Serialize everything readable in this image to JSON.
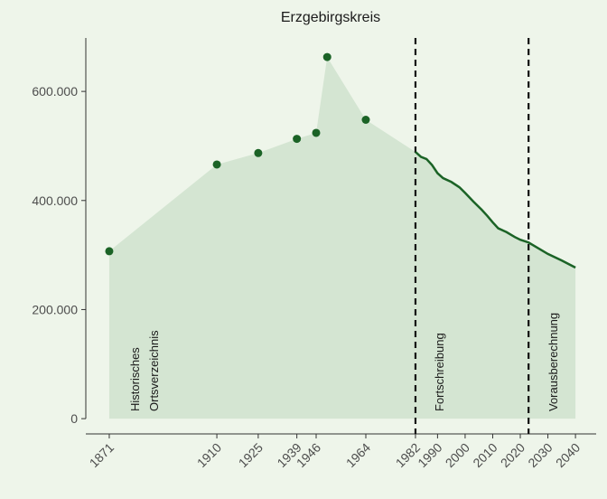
{
  "chart_data": {
    "type": "line",
    "title": "Erzgebirgskreis",
    "xlim": [
      1862.5,
      2047.5
    ],
    "ylim": [
      -28000,
      698000
    ],
    "xticks": [
      1871,
      1910,
      1925,
      1939,
      1946,
      1964,
      1982,
      1990,
      2000,
      2010,
      2020,
      2030,
      2040
    ],
    "yticks": [
      0,
      {
        "value": 200000,
        "label": "200.000"
      },
      {
        "value": 400000,
        "label": "400.000"
      },
      {
        "value": 600000,
        "label": "600.000"
      }
    ],
    "series": [
      {
        "color": "#1b6326",
        "style": "points",
        "x": [
          1871,
          1910,
          1925,
          1939,
          1946,
          1950,
          1964
        ],
        "values": [
          307000,
          466000,
          487000,
          513000,
          524000,
          663000,
          548000
        ]
      },
      {
        "color": "#1b6326",
        "style": "line",
        "x": [
          1982,
          1984,
          1986,
          1988,
          1990,
          1992,
          1995,
          1998,
          2000,
          2003,
          2006,
          2008,
          2010,
          2012,
          2015,
          2018,
          2020,
          2023,
          2026,
          2030,
          2035,
          2040
        ],
        "values": [
          489000,
          480000,
          476000,
          465000,
          450000,
          441000,
          434000,
          424000,
          414000,
          398000,
          383000,
          372000,
          360000,
          349000,
          342000,
          333000,
          328000,
          323000,
          314000,
          302000,
          290000,
          277000
        ]
      }
    ],
    "area_color": "#d4e5d2",
    "vlines": [
      1982,
      2023
    ],
    "annotations": [
      [
        "Historisches",
        "Ortsverzeichnis"
      ],
      [
        "Fortschreibung"
      ],
      [
        "Vorausberechnung"
      ]
    ]
  }
}
